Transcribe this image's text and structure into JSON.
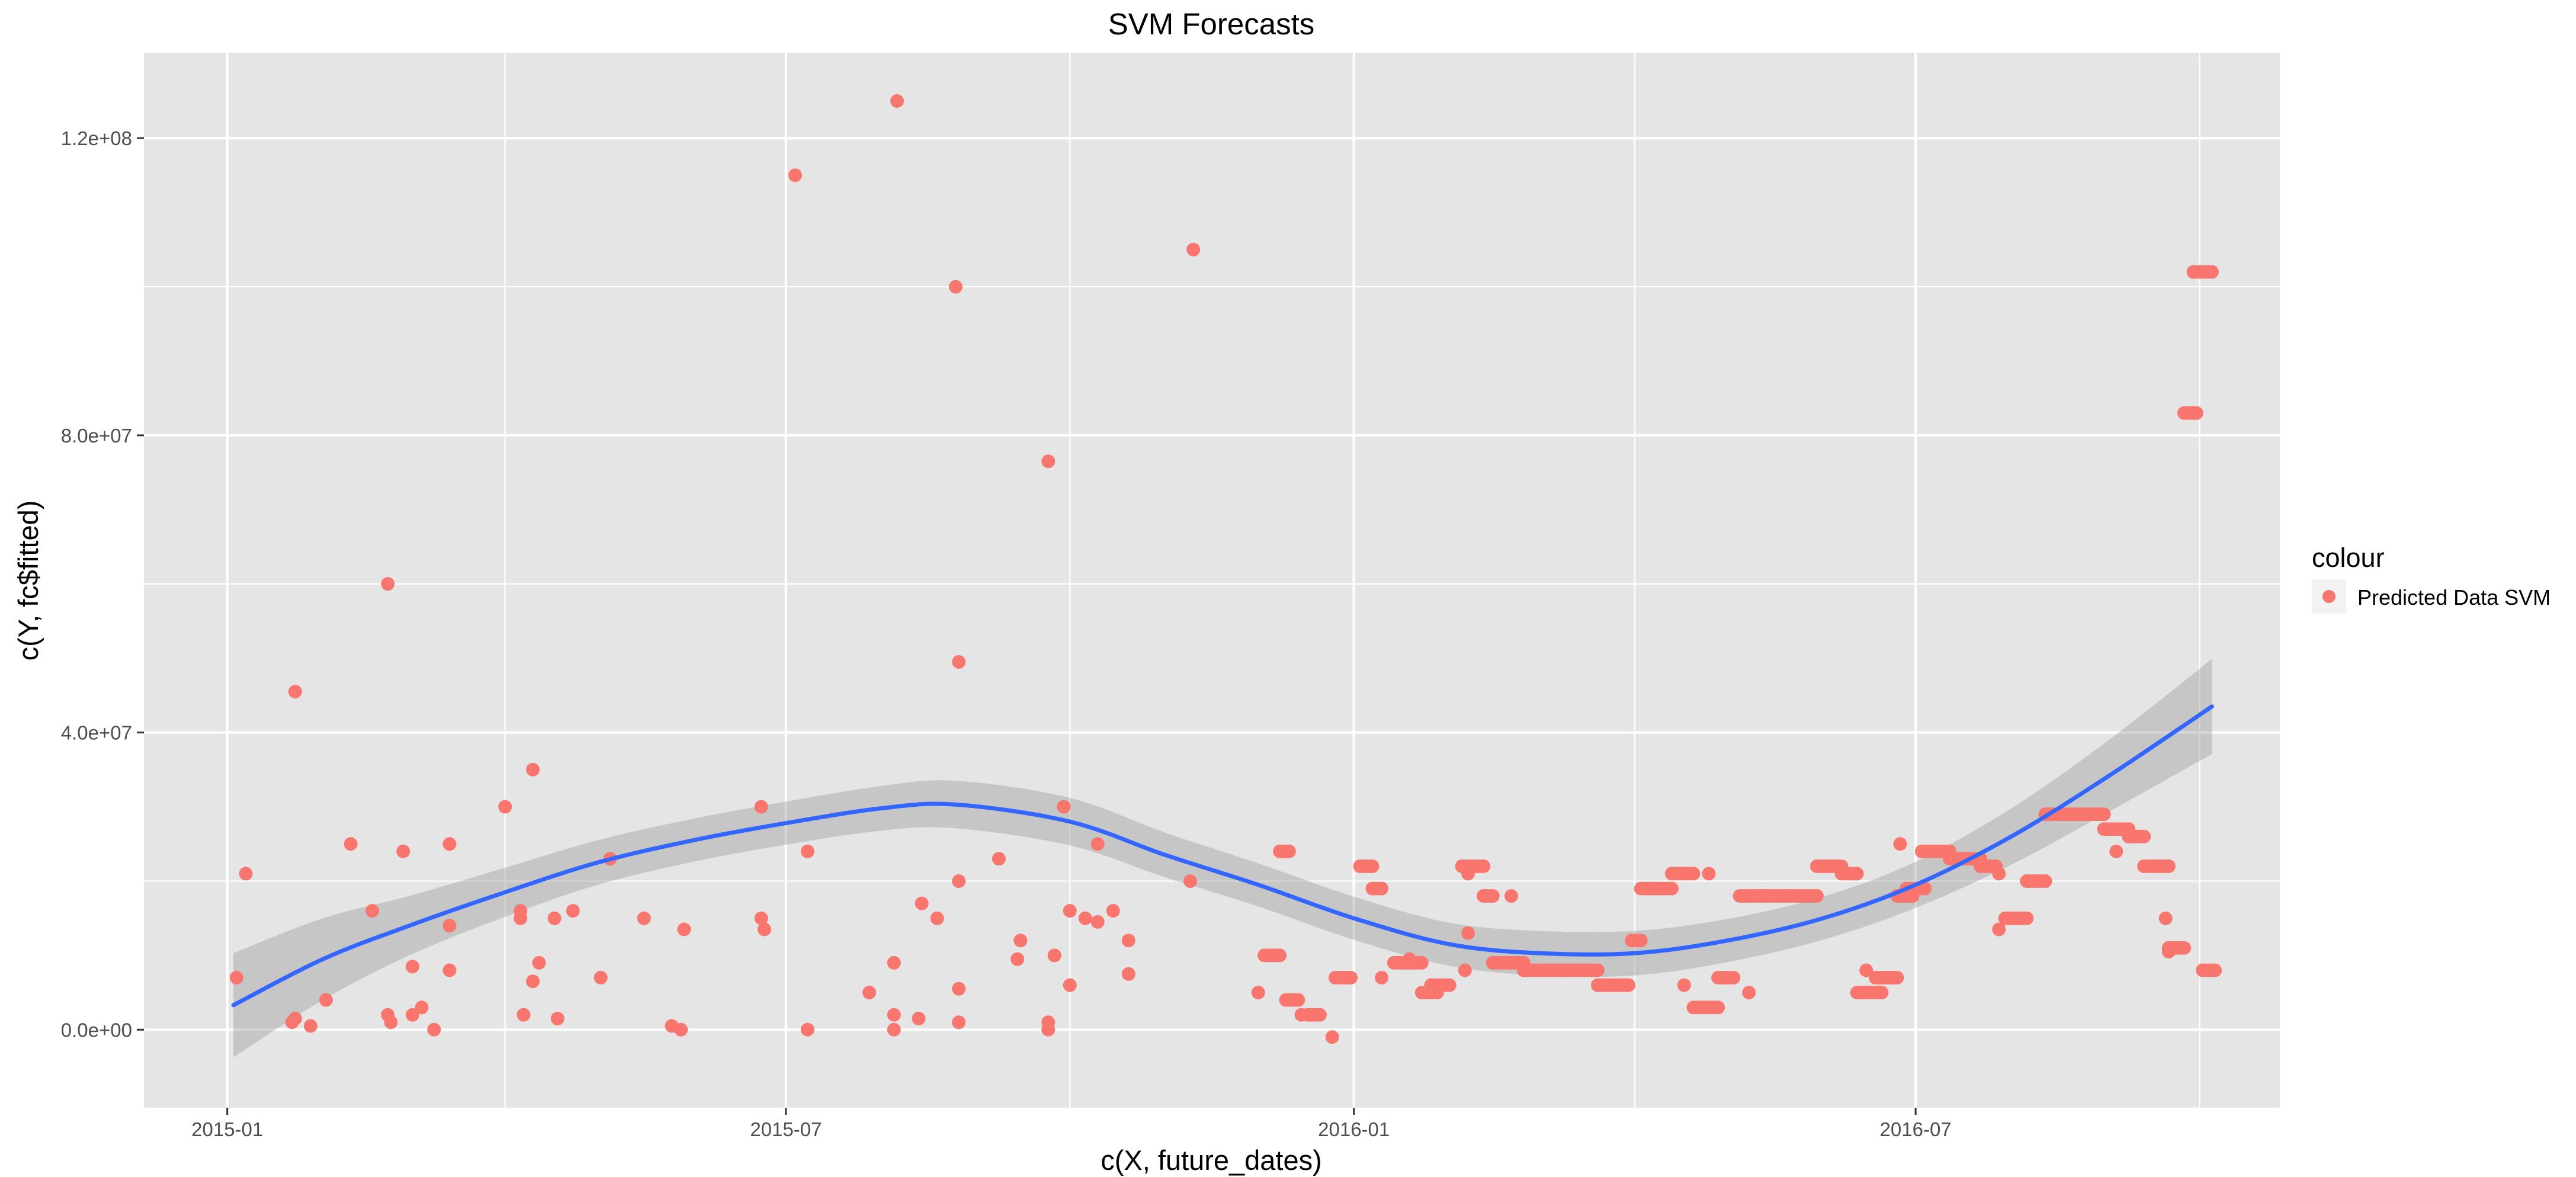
{
  "chart_data": {
    "type": "scatter",
    "title": "SVM Forecasts",
    "xlabel": "c(X, future_dates)",
    "ylabel": "c(Y, fc$fitted)",
    "x_type": "date",
    "xlim": [
      "2014-12-05",
      "2016-10-27"
    ],
    "ylim": [
      -10500000,
      131500000
    ],
    "x_ticks": [
      {
        "value": "2015-01-01",
        "label": "2015-01"
      },
      {
        "value": "2015-07-01",
        "label": "2015-07"
      },
      {
        "value": "2016-01-01",
        "label": "2016-01"
      },
      {
        "value": "2016-07-01",
        "label": "2016-07"
      }
    ],
    "x_minor_ticks": [
      "2015-04-01",
      "2015-10-01",
      "2016-04-01",
      "2016-10-01"
    ],
    "y_ticks": [
      {
        "value": 0,
        "label": "0.0e+00"
      },
      {
        "value": 40000000,
        "label": "4.0e+07"
      },
      {
        "value": 80000000,
        "label": "8.0e+07"
      },
      {
        "value": 120000000,
        "label": "1.2e+08"
      }
    ],
    "y_minor_ticks": [
      20000000,
      60000000,
      100000000
    ],
    "grid": true,
    "legend": {
      "title": "colour",
      "position": "right",
      "entries": [
        {
          "label": "Predicted Data SVM",
          "color": "#F8766D"
        }
      ]
    },
    "colors": {
      "panel": "#E5E5E5",
      "grid": "#FFFFFF",
      "points": "#F8766D",
      "smooth_line": "#3366FF",
      "smooth_band": "#BDBDBD",
      "axis_text": "#4D4D4D",
      "title_text": "#000000"
    },
    "series": [
      {
        "name": "Predicted Data SVM",
        "points": [
          [
            "2015-01-04",
            7000000
          ],
          [
            "2015-01-07",
            21000000
          ],
          [
            "2015-01-23",
            45500000
          ],
          [
            "2015-01-22",
            1000000
          ],
          [
            "2015-01-23",
            1500000
          ],
          [
            "2015-01-28",
            500000
          ],
          [
            "2015-02-02",
            4000000
          ],
          [
            "2015-02-10",
            25000000
          ],
          [
            "2015-02-17",
            16000000
          ],
          [
            "2015-02-22",
            60000000
          ],
          [
            "2015-02-22",
            2000000
          ],
          [
            "2015-02-23",
            1000000
          ],
          [
            "2015-02-27",
            24000000
          ],
          [
            "2015-03-02",
            8500000
          ],
          [
            "2015-03-02",
            2000000
          ],
          [
            "2015-03-05",
            3000000
          ],
          [
            "2015-03-09",
            0
          ],
          [
            "2015-03-14",
            25000000
          ],
          [
            "2015-03-14",
            14000000
          ],
          [
            "2015-03-14",
            8000000
          ],
          [
            "2015-04-01",
            30000000
          ],
          [
            "2015-04-06",
            16000000
          ],
          [
            "2015-04-06",
            15000000
          ],
          [
            "2015-04-07",
            2000000
          ],
          [
            "2015-04-10",
            35000000
          ],
          [
            "2015-04-10",
            6500000
          ],
          [
            "2015-04-12",
            9000000
          ],
          [
            "2015-04-17",
            15000000
          ],
          [
            "2015-04-18",
            1500000
          ],
          [
            "2015-04-23",
            16000000
          ],
          [
            "2015-05-02",
            7000000
          ],
          [
            "2015-05-05",
            23000000
          ],
          [
            "2015-05-16",
            15000000
          ],
          [
            "2015-05-25",
            500000
          ],
          [
            "2015-05-28",
            0
          ],
          [
            "2015-05-29",
            13500000
          ],
          [
            "2015-06-23",
            30000000
          ],
          [
            "2015-06-23",
            15000000
          ],
          [
            "2015-06-24",
            13500000
          ],
          [
            "2015-07-04",
            115000000
          ],
          [
            "2015-07-08",
            24000000
          ],
          [
            "2015-07-08",
            0
          ],
          [
            "2015-07-28",
            5000000
          ],
          [
            "2015-08-06",
            125000000
          ],
          [
            "2015-08-05",
            9000000
          ],
          [
            "2015-08-05",
            2000000
          ],
          [
            "2015-08-05",
            0
          ],
          [
            "2015-08-13",
            1500000
          ],
          [
            "2015-08-14",
            17000000
          ],
          [
            "2015-08-19",
            15000000
          ],
          [
            "2015-08-25",
            100000000
          ],
          [
            "2015-08-26",
            49500000
          ],
          [
            "2015-08-26",
            20000000
          ],
          [
            "2015-08-26",
            5500000
          ],
          [
            "2015-08-26",
            1000000
          ],
          [
            "2015-09-08",
            23000000
          ],
          [
            "2015-09-14",
            9500000
          ],
          [
            "2015-09-15",
            12000000
          ],
          [
            "2015-09-24",
            76500000
          ],
          [
            "2015-09-24",
            1000000
          ],
          [
            "2015-09-24",
            0
          ],
          [
            "2015-09-26",
            10000000
          ],
          [
            "2015-09-29",
            30000000
          ],
          [
            "2015-10-01",
            16000000
          ],
          [
            "2015-10-01",
            6000000
          ],
          [
            "2015-10-06",
            15000000
          ],
          [
            "2015-10-10",
            25000000
          ],
          [
            "2015-10-10",
            14500000
          ],
          [
            "2015-10-15",
            16000000
          ],
          [
            "2015-10-20",
            12000000
          ],
          [
            "2015-10-20",
            7500000
          ],
          [
            "2015-11-10",
            105000000
          ],
          [
            "2015-11-09",
            20000000
          ],
          [
            "2015-12-01",
            5000000
          ],
          [
            "2015-12-09",
            24000000
          ],
          [
            "2015-12-15",
            2000000
          ],
          [
            "2015-12-25",
            -1000000
          ],
          [
            "2016-01-10",
            7000000
          ],
          [
            "2016-01-19",
            9500000
          ],
          [
            "2016-01-28",
            5000000
          ],
          [
            "2016-02-06",
            8000000
          ],
          [
            "2016-02-07",
            13000000
          ],
          [
            "2016-02-07",
            21000000
          ],
          [
            "2016-02-21",
            18000000
          ],
          [
            "2016-04-17",
            6000000
          ],
          [
            "2016-04-25",
            21000000
          ],
          [
            "2016-05-08",
            5000000
          ],
          [
            "2016-06-15",
            8000000
          ],
          [
            "2016-06-26",
            25000000
          ],
          [
            "2016-07-28",
            13500000
          ],
          [
            "2016-07-28",
            21000000
          ],
          [
            "2016-09-04",
            24000000
          ],
          [
            "2016-09-20",
            15000000
          ],
          [
            "2016-09-21",
            10500000
          ]
        ],
        "runs": [
          {
            "x": [
              "2015-12-03",
              "2015-12-08"
            ],
            "y": 10000000
          },
          {
            "x": [
              "2015-12-08",
              "2015-12-11"
            ],
            "y": 24000000
          },
          {
            "x": [
              "2015-12-10",
              "2015-12-14"
            ],
            "y": 4000000
          },
          {
            "x": [
              "2015-12-17",
              "2015-12-21"
            ],
            "y": 2000000
          },
          {
            "x": [
              "2015-12-26",
              "2015-12-31"
            ],
            "y": 7000000
          },
          {
            "x": [
              "2016-01-03",
              "2016-01-07"
            ],
            "y": 22000000
          },
          {
            "x": [
              "2016-01-07",
              "2016-01-10"
            ],
            "y": 19000000
          },
          {
            "x": [
              "2016-01-14",
              "2016-01-23"
            ],
            "y": 9000000
          },
          {
            "x": [
              "2016-01-23",
              "2016-01-26"
            ],
            "y": 5000000
          },
          {
            "x": [
              "2016-01-26",
              "2016-02-01"
            ],
            "y": 6000000
          },
          {
            "x": [
              "2016-02-05",
              "2016-02-12"
            ],
            "y": 22000000
          },
          {
            "x": [
              "2016-02-12",
              "2016-02-15"
            ],
            "y": 18000000
          },
          {
            "x": [
              "2016-02-15",
              "2016-02-25"
            ],
            "y": 9000000
          },
          {
            "x": [
              "2016-02-25",
              "2016-03-20"
            ],
            "y": 8000000
          },
          {
            "x": [
              "2016-03-20",
              "2016-03-30"
            ],
            "y": 6000000
          },
          {
            "x": [
              "2016-03-31",
              "2016-04-03"
            ],
            "y": 12000000
          },
          {
            "x": [
              "2016-04-03",
              "2016-04-13"
            ],
            "y": 19000000
          },
          {
            "x": [
              "2016-04-13",
              "2016-04-20"
            ],
            "y": 21000000
          },
          {
            "x": [
              "2016-04-20",
              "2016-04-28"
            ],
            "y": 3000000
          },
          {
            "x": [
              "2016-04-28",
              "2016-05-03"
            ],
            "y": 7000000
          },
          {
            "x": [
              "2016-05-05",
              "2016-05-30"
            ],
            "y": 18000000
          },
          {
            "x": [
              "2016-05-30",
              "2016-06-07"
            ],
            "y": 22000000
          },
          {
            "x": [
              "2016-06-07",
              "2016-06-12"
            ],
            "y": 21000000
          },
          {
            "x": [
              "2016-06-12",
              "2016-06-20"
            ],
            "y": 5000000
          },
          {
            "x": [
              "2016-06-18",
              "2016-06-25"
            ],
            "y": 7000000
          },
          {
            "x": [
              "2016-06-25",
              "2016-06-30"
            ],
            "y": 18000000
          },
          {
            "x": [
              "2016-06-28",
              "2016-07-04"
            ],
            "y": 19000000
          },
          {
            "x": [
              "2016-07-03",
              "2016-07-12"
            ],
            "y": 24000000
          },
          {
            "x": [
              "2016-07-12",
              "2016-07-22"
            ],
            "y": 23000000
          },
          {
            "x": [
              "2016-07-22",
              "2016-07-27"
            ],
            "y": 22000000
          },
          {
            "x": [
              "2016-07-30",
              "2016-08-06"
            ],
            "y": 15000000
          },
          {
            "x": [
              "2016-08-06",
              "2016-08-12"
            ],
            "y": 20000000
          },
          {
            "x": [
              "2016-08-12",
              "2016-08-31"
            ],
            "y": 29000000
          },
          {
            "x": [
              "2016-08-31",
              "2016-09-08"
            ],
            "y": 27000000
          },
          {
            "x": [
              "2016-09-08",
              "2016-09-13"
            ],
            "y": 26000000
          },
          {
            "x": [
              "2016-09-13",
              "2016-09-21"
            ],
            "y": 22000000
          },
          {
            "x": [
              "2016-09-21",
              "2016-09-26"
            ],
            "y": 11000000
          },
          {
            "x": [
              "2016-09-26",
              "2016-09-30"
            ],
            "y": 83000000
          },
          {
            "x": [
              "2016-09-29",
              "2016-10-05"
            ],
            "y": 102000000
          },
          {
            "x": [
              "2016-10-02",
              "2016-10-06"
            ],
            "y": 8000000
          }
        ]
      }
    ],
    "smooth": {
      "method": "loess",
      "points": [
        [
          "2015-01-03",
          3300000
        ],
        [
          "2015-02-01",
          9500000
        ],
        [
          "2015-03-01",
          14000000
        ],
        [
          "2015-04-01",
          18500000
        ],
        [
          "2015-05-01",
          22500000
        ],
        [
          "2015-06-01",
          25500000
        ],
        [
          "2015-07-01",
          27800000
        ],
        [
          "2015-08-01",
          29800000
        ],
        [
          "2015-08-25",
          30300000
        ],
        [
          "2015-10-01",
          28000000
        ],
        [
          "2015-11-01",
          23500000
        ],
        [
          "2015-12-01",
          19500000
        ],
        [
          "2016-01-01",
          15000000
        ],
        [
          "2016-02-01",
          11500000
        ],
        [
          "2016-03-01",
          10300000
        ],
        [
          "2016-04-01",
          10300000
        ],
        [
          "2016-05-01",
          12000000
        ],
        [
          "2016-06-01",
          15000000
        ],
        [
          "2016-07-01",
          19500000
        ],
        [
          "2016-08-01",
          26000000
        ],
        [
          "2016-09-01",
          34000000
        ],
        [
          "2016-10-05",
          43500000
        ]
      ],
      "band_halfwidth": [
        7000000,
        5500000,
        4000000,
        3300000,
        3000000,
        2900000,
        2900000,
        3000000,
        3200000,
        3200000,
        3000000,
        2900000,
        2900000,
        2900000,
        3000000,
        3000000,
        2900000,
        2900000,
        3100000,
        3800000,
        4800000,
        6400000
      ]
    }
  }
}
